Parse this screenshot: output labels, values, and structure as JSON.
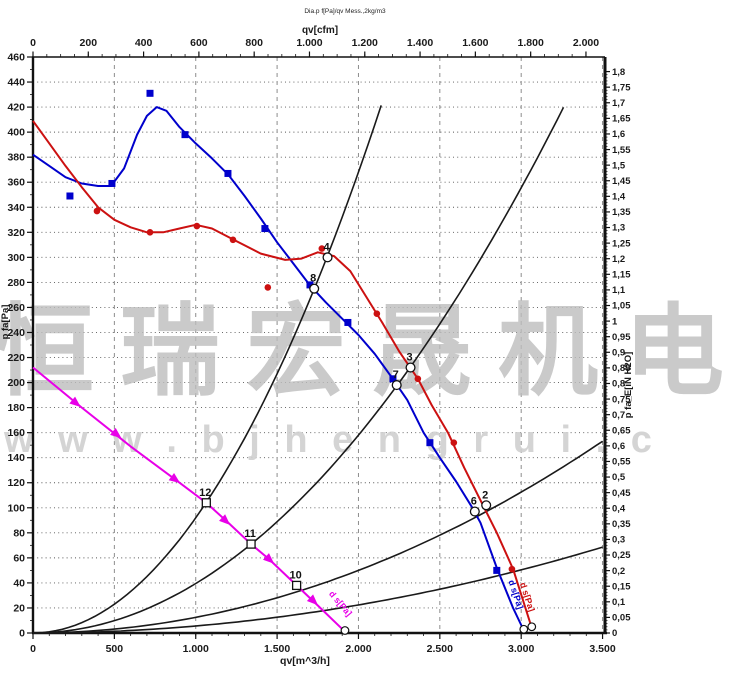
{
  "header": {
    "title": "Dia.p f[Pa]/qv Mess.,2kg/m3"
  },
  "watermark": {
    "line1": "恒瑞宏晟机电",
    "line2": "w w w . b j h e n g r u i . c",
    "color1": "#bdbdbd",
    "color2": "#d0d0d0"
  },
  "chart_data": {
    "type": "line",
    "title": "Dia.p f[Pa]/qv Mess.,2kg/m3",
    "grid": "on",
    "x_bottom": {
      "label": "qv[m^3/h]",
      "min": 0,
      "max": 3515,
      "tick_step": 500,
      "minor_step": 100,
      "tick_max": 3500
    },
    "x_top": {
      "label": "qv[cfm]",
      "min": 0,
      "tick_max": 2000,
      "tick_step": 200,
      "minor_step": 50,
      "m3h_per_cfm": 1.699
    },
    "y_left": {
      "label": "p fa[Pa]",
      "min": 0,
      "max": 460,
      "tick_step": 20,
      "minor_step": 10
    },
    "y_right": {
      "label": "p fa_E[iN H2O]",
      "min": 0,
      "tick_max": 1.8,
      "tick_step": 0.05,
      "minor_step": 0.01,
      "pa_per_unit": 249.089
    },
    "series": [
      {
        "name": "fan-curve-blue",
        "color": "#0000cc",
        "marker": "square",
        "curve": [
          [
            0,
            382
          ],
          [
            100,
            373
          ],
          [
            200,
            364
          ],
          [
            300,
            359
          ],
          [
            400,
            357
          ],
          [
            480,
            357
          ],
          [
            560,
            371
          ],
          [
            640,
            398
          ],
          [
            700,
            413
          ],
          [
            760,
            420
          ],
          [
            820,
            417
          ],
          [
            900,
            404
          ],
          [
            1000,
            391
          ],
          [
            1100,
            379
          ],
          [
            1200,
            366
          ],
          [
            1300,
            349
          ],
          [
            1400,
            331
          ],
          [
            1500,
            312
          ],
          [
            1600,
            295
          ],
          [
            1700,
            278
          ],
          [
            1800,
            264
          ],
          [
            1900,
            251
          ],
          [
            2000,
            238
          ],
          [
            2100,
            223
          ],
          [
            2200,
            205
          ],
          [
            2300,
            186
          ],
          [
            2400,
            160
          ],
          [
            2500,
            140
          ],
          [
            2600,
            121
          ],
          [
            2700,
            100
          ],
          [
            2750,
            88
          ],
          [
            2850,
            52
          ],
          [
            2950,
            20
          ],
          [
            3016,
            2
          ]
        ],
        "markers": [
          [
            227,
            349
          ],
          [
            485,
            359
          ],
          [
            719,
            431
          ],
          [
            934,
            398
          ],
          [
            1198,
            367
          ],
          [
            1425,
            323
          ],
          [
            1702,
            278
          ],
          [
            1935,
            248
          ],
          [
            2212,
            203
          ],
          [
            2439,
            152
          ],
          [
            2850,
            50
          ]
        ]
      },
      {
        "name": "fan-curve-red",
        "color": "#cc1111",
        "marker": "circle",
        "curve": [
          [
            0,
            409
          ],
          [
            100,
            391
          ],
          [
            200,
            373
          ],
          [
            300,
            356
          ],
          [
            400,
            340
          ],
          [
            500,
            330
          ],
          [
            600,
            324
          ],
          [
            700,
            320
          ],
          [
            800,
            320
          ],
          [
            900,
            323
          ],
          [
            1000,
            326
          ],
          [
            1100,
            323
          ],
          [
            1250,
            313
          ],
          [
            1400,
            303
          ],
          [
            1550,
            298
          ],
          [
            1650,
            299
          ],
          [
            1750,
            304
          ],
          [
            1850,
            301
          ],
          [
            1950,
            289
          ],
          [
            2050,
            268
          ],
          [
            2150,
            247
          ],
          [
            2250,
            225
          ],
          [
            2365,
            203
          ],
          [
            2450,
            182
          ],
          [
            2550,
            160
          ],
          [
            2650,
            132
          ],
          [
            2750,
            106
          ],
          [
            2850,
            80
          ],
          [
            2950,
            51
          ],
          [
            3065,
            4
          ]
        ],
        "markers": [
          [
            393,
            337
          ],
          [
            719,
            320
          ],
          [
            1007,
            325
          ],
          [
            1229,
            314
          ],
          [
            1443,
            276
          ],
          [
            1775,
            307
          ],
          [
            2113,
            255
          ],
          [
            2365,
            203
          ],
          [
            2586,
            152
          ],
          [
            2943,
            51
          ]
        ]
      },
      {
        "name": "control-line-magenta",
        "color": "#e800e8",
        "marker": "arrow",
        "curve": [
          [
            0,
            212
          ],
          [
            300,
            180
          ],
          [
            600,
            149
          ],
          [
            900,
            120
          ],
          [
            1065,
            104
          ],
          [
            1200,
            88
          ],
          [
            1340,
            71
          ],
          [
            1450,
            59
          ],
          [
            1620,
            38
          ],
          [
            1750,
            22
          ],
          [
            1917,
            1
          ]
        ],
        "markers": [
          [
            260,
            184
          ],
          [
            510,
            159
          ],
          [
            870,
            123
          ],
          [
            1180,
            90
          ],
          [
            1450,
            59
          ],
          [
            1720,
            26
          ]
        ]
      }
    ],
    "system_curves": {
      "color": "#1a1a1a",
      "k_values": [
        9.2e-05,
        3.95e-05,
        1.25e-05,
        5.6e-06
      ],
      "q_end": [
        2175,
        3299,
        3515,
        3515
      ]
    },
    "operating_points": [
      {
        "label": "12",
        "q": 1065,
        "p": 104,
        "shape": "square"
      },
      {
        "label": "11",
        "q": 1340,
        "p": 71,
        "shape": "square"
      },
      {
        "label": "10",
        "q": 1620,
        "p": 38,
        "shape": "square"
      },
      {
        "label": "8",
        "q": 1728,
        "p": 275,
        "shape": "circle"
      },
      {
        "label": "4",
        "q": 1810,
        "p": 300,
        "shape": "circle"
      },
      {
        "label": "7",
        "q": 2235,
        "p": 198,
        "shape": "circle"
      },
      {
        "label": "3",
        "q": 2320,
        "p": 212,
        "shape": "circle"
      },
      {
        "label": "6",
        "q": 2715,
        "p": 97,
        "shape": "circle"
      },
      {
        "label": "2",
        "q": 2785,
        "p": 102,
        "shape": "circle"
      }
    ],
    "end_markers": [
      {
        "q": 1917,
        "p": 2
      },
      {
        "q": 3016,
        "p": 3
      },
      {
        "q": 3065,
        "p": 5
      }
    ],
    "curve_tags": [
      {
        "text": "d s[Pa]",
        "q": 1875,
        "p": 22,
        "angle": 50,
        "color": "#e800e8"
      },
      {
        "text": "d s[Pa]",
        "q": 2950,
        "p": 30,
        "angle": 72,
        "color": "#0000cc"
      },
      {
        "text": "d s[Pa]",
        "q": 3020,
        "p": 28,
        "angle": 72,
        "color": "#cc1111"
      }
    ]
  }
}
